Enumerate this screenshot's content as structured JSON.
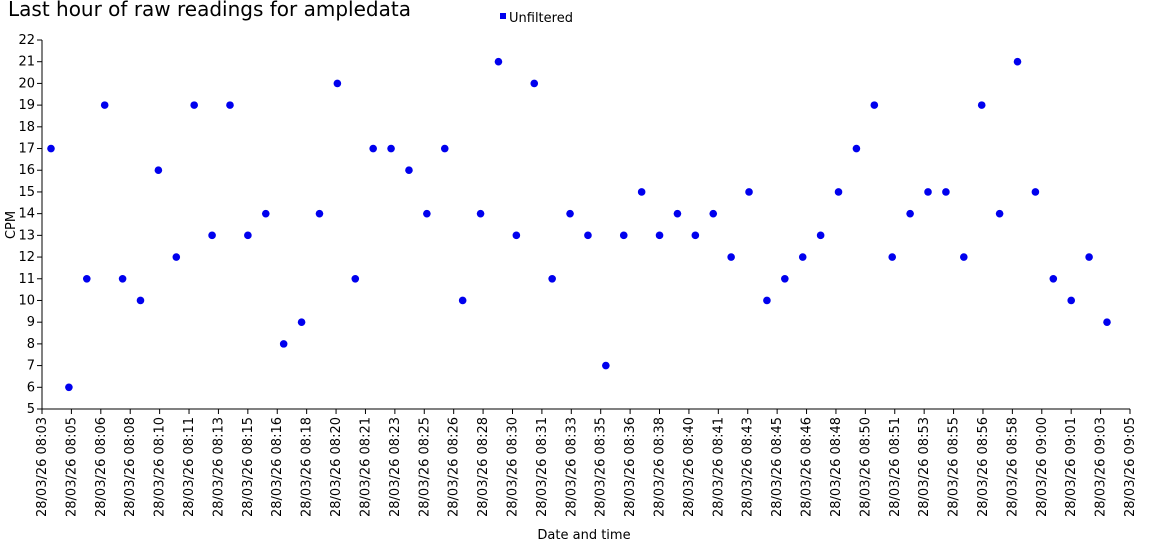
{
  "chart_data": {
    "type": "scatter",
    "title": "Last hour of raw readings for ampledata",
    "xlabel": "Date and time",
    "ylabel": "CPM",
    "ylim": [
      5,
      22
    ],
    "yticks": [
      5,
      6,
      7,
      8,
      9,
      10,
      11,
      12,
      13,
      14,
      15,
      16,
      17,
      18,
      19,
      20,
      21,
      22
    ],
    "xticks": [
      "28/03/26 08:03",
      "28/03/26 08:05",
      "28/03/26 08:06",
      "28/03/26 08:08",
      "28/03/26 08:10",
      "28/03/26 08:11",
      "28/03/26 08:13",
      "28/03/26 08:15",
      "28/03/26 08:16",
      "28/03/26 08:18",
      "28/03/26 08:20",
      "28/03/26 08:21",
      "28/03/26 08:23",
      "28/03/26 08:25",
      "28/03/26 08:26",
      "28/03/26 08:28",
      "28/03/26 08:30",
      "28/03/26 08:31",
      "28/03/26 08:33",
      "28/03/26 08:35",
      "28/03/26 08:36",
      "28/03/26 08:38",
      "28/03/26 08:40",
      "28/03/26 08:41",
      "28/03/26 08:43",
      "28/03/26 08:45",
      "28/03/26 08:46",
      "28/03/26 08:48",
      "28/03/26 08:50",
      "28/03/26 08:51",
      "28/03/26 08:53",
      "28/03/26 08:55",
      "28/03/26 08:56",
      "28/03/26 08:58",
      "28/03/26 09:00",
      "28/03/26 09:01",
      "28/03/26 09:03",
      "28/03/26 09:05"
    ],
    "legend": {
      "position": "top-center",
      "marker": "square"
    },
    "grid": false,
    "series": [
      {
        "name": "Unfiltered",
        "color": "#0000ee",
        "points": [
          17,
          6,
          11,
          19,
          11,
          10,
          16,
          12,
          19,
          13,
          19,
          13,
          14,
          8,
          9,
          14,
          20,
          11,
          17,
          17,
          16,
          14,
          17,
          10,
          14,
          21,
          13,
          20,
          11,
          14,
          13,
          7,
          13,
          15,
          13,
          14,
          13,
          14,
          12,
          15,
          10,
          11,
          12,
          13,
          15,
          17,
          19,
          12,
          14,
          15,
          15,
          12,
          19,
          14,
          21,
          15,
          11,
          10,
          12,
          9
        ]
      }
    ]
  }
}
